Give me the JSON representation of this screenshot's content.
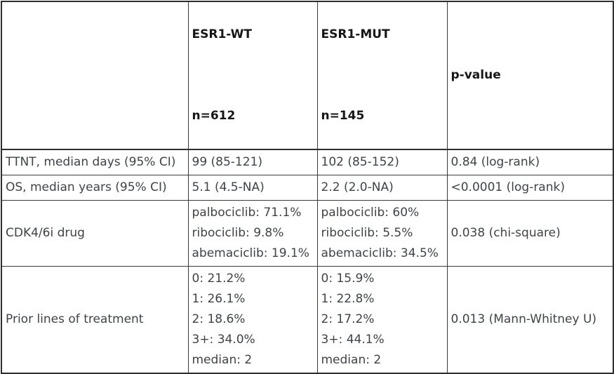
{
  "table": {
    "header": {
      "empty": "",
      "wt": {
        "name": "ESR1-WT",
        "n": "n=612"
      },
      "mut": {
        "name": "ESR1-MUT",
        "n": "n=145"
      },
      "p": "p-value"
    },
    "rows": [
      {
        "label": "TTNT, median days (95% CI)",
        "wt": [
          "99 (85-121)"
        ],
        "mut": [
          "102 (85-152)"
        ],
        "p": "0.84 (log-rank)"
      },
      {
        "label": "OS, median years (95% CI)",
        "wt": [
          "5.1 (4.5-NA)"
        ],
        "mut": [
          "2.2 (2.0-NA)"
        ],
        "p": "<0.0001 (log-rank)"
      },
      {
        "label": "CDK4/6i drug",
        "wt": [
          "palbociclib: 71.1%",
          "ribociclib: 9.8%",
          "abemaciclib: 19.1%"
        ],
        "mut": [
          "palbociclib: 60%",
          "ribociclib: 5.5%",
          "abemaciclib: 34.5%"
        ],
        "p": "0.038 (chi-square)"
      },
      {
        "label": "Prior lines of treatment",
        "wt": [
          "0: 21.2%",
          "1: 26.1%",
          "2: 18.6%",
          "3+: 34.0%",
          "median: 2"
        ],
        "mut": [
          "0: 15.9%",
          "1: 22.8%",
          "2: 17.2%",
          "3+: 44.1%",
          "median: 2"
        ],
        "p": "0.013 (Mann-Whitney U)"
      }
    ]
  },
  "colors": {
    "border_outer": "#2e2e2e",
    "border_inner": "#3a3a3a",
    "body_text": "#3f4347",
    "header_text": "#161616",
    "background": "#ffffff"
  },
  "chart_data": {
    "type": "table",
    "columns": [
      "",
      "ESR1-WT n=612",
      "ESR1-MUT n=145",
      "p-value"
    ],
    "rows": [
      [
        "TTNT, median days (95% CI)",
        "99 (85-121)",
        "102 (85-152)",
        "0.84 (log-rank)"
      ],
      [
        "OS, median years (95% CI)",
        "5.1 (4.5-NA)",
        "2.2 (2.0-NA)",
        "<0.0001 (log-rank)"
      ],
      [
        "CDK4/6i drug",
        "palbociclib: 71.1% | ribociclib: 9.8% | abemaciclib: 19.1%",
        "palbociclib: 60% | ribociclib: 5.5% | abemaciclib: 34.5%",
        "0.038 (chi-square)"
      ],
      [
        "Prior lines of treatment",
        "0: 21.2% | 1: 26.1% | 2: 18.6% | 3+: 34.0% | median: 2",
        "0: 15.9% | 1: 22.8% | 2: 17.2% | 3+: 44.1% | median: 2",
        "0.013 (Mann-Whitney U)"
      ]
    ]
  }
}
